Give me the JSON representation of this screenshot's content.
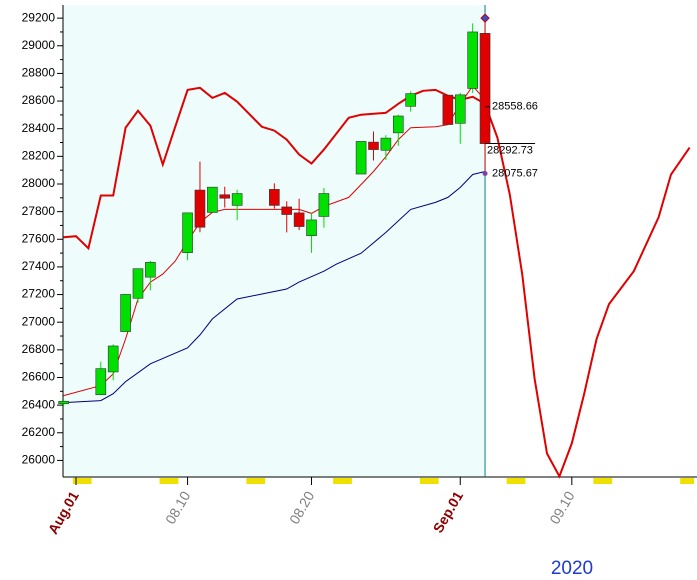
{
  "chart_data": {
    "type": "candlestick",
    "x": [
      -1,
      2,
      3,
      4,
      5,
      6,
      9,
      10,
      11,
      12,
      13,
      16,
      17,
      18,
      19,
      20,
      23,
      24,
      25,
      26,
      27,
      30,
      31,
      32,
      33
    ],
    "open": [
      26410,
      26475,
      26640,
      26932,
      27173,
      27326,
      27503,
      27956,
      27794,
      27922,
      27845,
      27961,
      27834,
      27791,
      27626,
      27765,
      28072,
      28303,
      28244,
      28370,
      28562,
      28643,
      28439,
      28691,
      29090
    ],
    "high": [
      26440,
      26714,
      26840,
      27202,
      27387,
      27443,
      27791,
      28162,
      27977,
      27980,
      27958,
      28005,
      27875,
      27894,
      27787,
      27971,
      28307,
      28380,
      28353,
      28502,
      28670,
      28643,
      28659,
      29162,
      29200
    ],
    "low": [
      26390,
      26475,
      26580,
      26932,
      27141,
      27231,
      27448,
      27651,
      27794,
      27830,
      27738,
      27822,
      27650,
      27667,
      27502,
      27684,
      28072,
      28170,
      28174,
      28276,
      28523,
      28430,
      28291,
      28658,
      28067
    ],
    "close": [
      26428,
      26664,
      26828,
      27201,
      27387,
      27433,
      27791,
      27687,
      27977,
      27897,
      27931,
      27845,
      27779,
      27692,
      27740,
      27931,
      28308,
      28249,
      28332,
      28492,
      28654,
      28430,
      28645,
      29100,
      28292
    ],
    "up_color": "#00e000",
    "down_color": "#e00000",
    "series": [
      {
        "color": "#e00000",
        "width": 2,
        "x": [
          -1,
          0,
          1,
          2,
          3,
          4,
          5,
          6,
          7,
          8,
          9,
          10,
          11,
          12,
          13,
          15,
          16,
          17,
          18,
          19,
          20,
          22,
          23,
          24,
          25,
          26,
          27,
          28,
          29,
          30,
          31,
          32,
          33,
          34,
          35,
          36,
          37,
          38,
          39,
          40,
          41,
          42,
          43,
          45,
          47,
          48,
          49.5
        ],
        "values": [
          27615,
          27622,
          27535,
          27917,
          27917,
          28407,
          28530,
          28422,
          28141,
          28414,
          28681,
          28696,
          28623,
          28659,
          28595,
          28414,
          28386,
          28321,
          28213,
          28148,
          28249,
          28479,
          28501,
          28508,
          28515,
          28580,
          28638,
          28674,
          28681,
          28638,
          28609,
          28631,
          28580,
          28335,
          27924,
          27348,
          26591,
          26050,
          25885,
          26123,
          26483,
          26879,
          27131,
          27369,
          27759,
          28069,
          28263
        ]
      },
      {
        "color": "#e00000",
        "width": 1,
        "x": [
          -1,
          2,
          3,
          4,
          5,
          6,
          7,
          8,
          9,
          10,
          11,
          12,
          13,
          15,
          17,
          18,
          19,
          20,
          22,
          23,
          24,
          25,
          26,
          27,
          29,
          30,
          31,
          32,
          33
        ],
        "values": [
          26469,
          26541,
          26627,
          26879,
          27168,
          27290,
          27348,
          27442,
          27586,
          27723,
          27795,
          27816,
          27816,
          27816,
          27816,
          27816,
          27787,
          27838,
          27903,
          27996,
          28090,
          28198,
          28321,
          28407,
          28414,
          28429,
          28580,
          28710,
          28609
        ]
      },
      {
        "color": "#000080",
        "width": 1,
        "x": [
          -1,
          2,
          3,
          4,
          6,
          9,
          10,
          11,
          13,
          15,
          17,
          18,
          20,
          21,
          23,
          25,
          27,
          29,
          30,
          31,
          32,
          33
        ],
        "values": [
          26418,
          26433,
          26483,
          26570,
          26699,
          26815,
          26908,
          27024,
          27168,
          27204,
          27240,
          27290,
          27369,
          27420,
          27499,
          27650,
          27816,
          27867,
          27903,
          27975,
          28069,
          28090
        ]
      }
    ],
    "annotations": [
      28558.66,
      28292.73,
      28075.67
    ],
    "cursor": 33,
    "xlim": [
      -1.05,
      50.1
    ],
    "ylim": [
      25880,
      29295
    ],
    "xticks": [
      {
        "value": 0,
        "label": "Aug.01"
      },
      {
        "value": 9,
        "label": "08.10"
      },
      {
        "value": 19,
        "label": "08.20"
      },
      {
        "value": 31,
        "label": "Sep.01"
      },
      {
        "value": 40,
        "label": "09.10"
      }
    ],
    "xtick_colors": [
      "#8b0000",
      "#808080",
      "#808080",
      "#8b0000",
      "#808080"
    ],
    "yticks": [
      26000,
      26200,
      26400,
      26600,
      26800,
      27000,
      27200,
      27400,
      27600,
      27800,
      28000,
      28200,
      28400,
      28600,
      28800,
      29000,
      29200
    ],
    "year_label": "2020"
  }
}
